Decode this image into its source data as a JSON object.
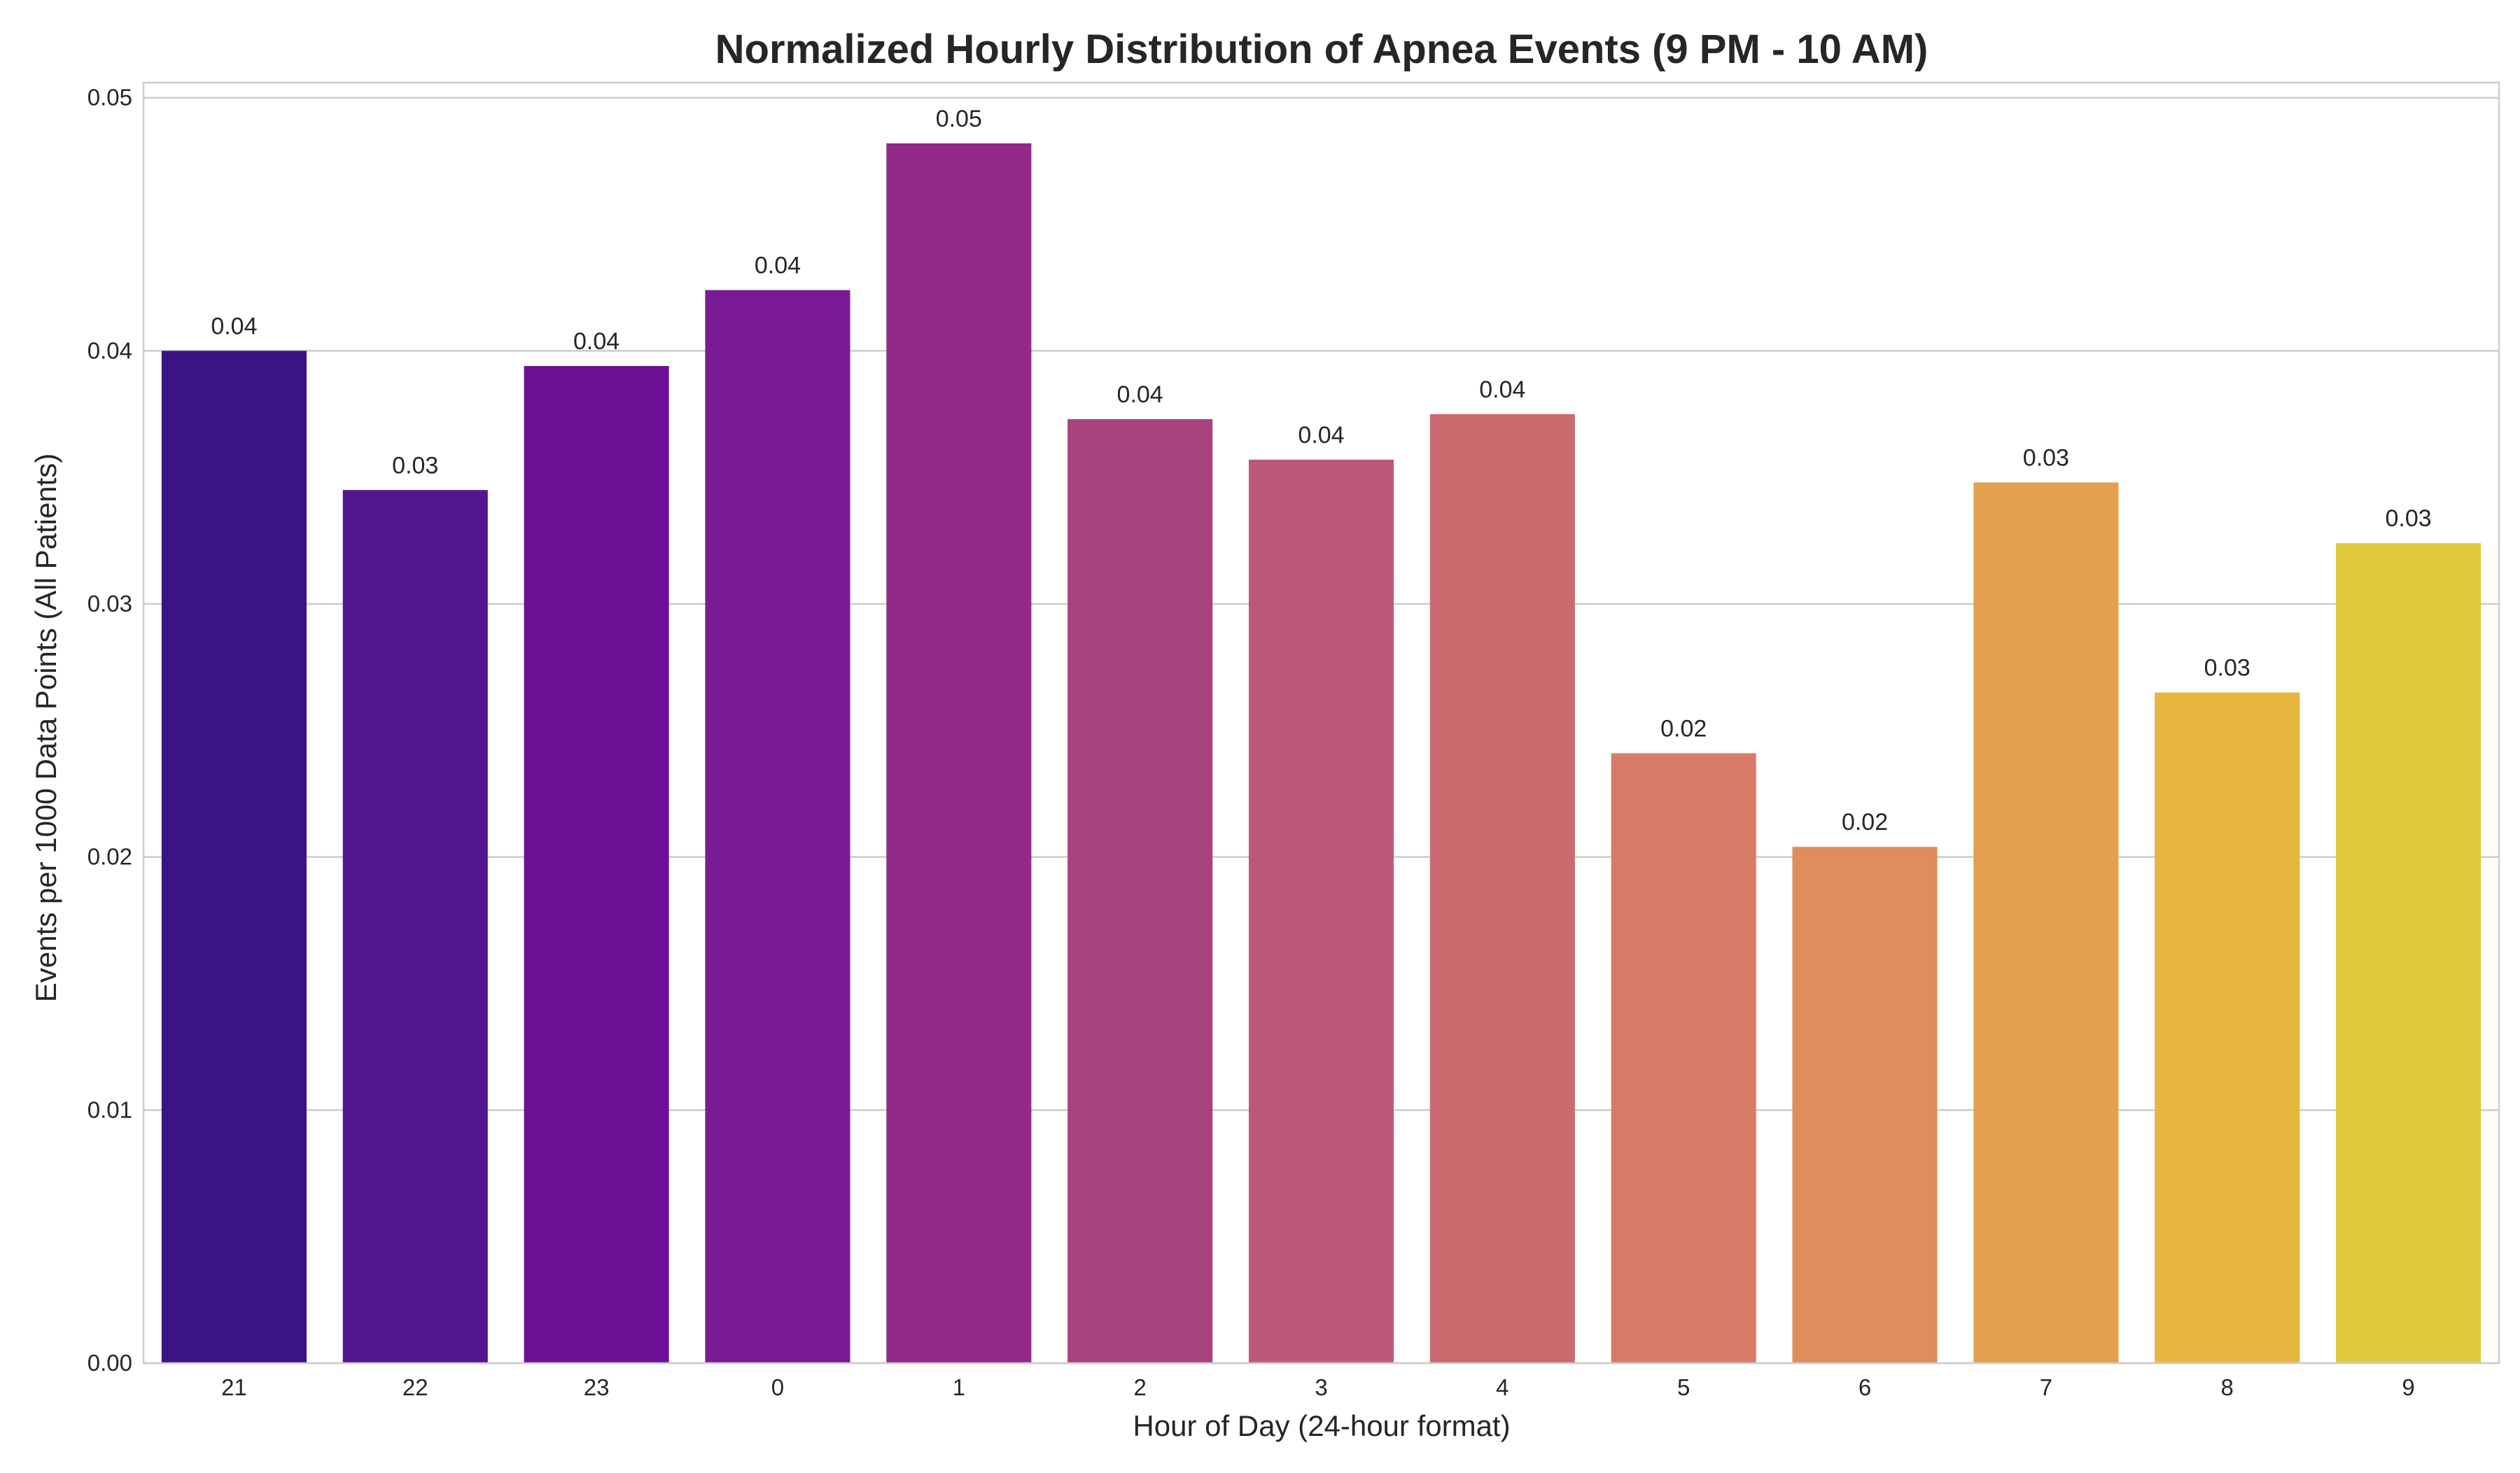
{
  "chart_data": {
    "type": "bar",
    "title": "Normalized Hourly Distribution of Apnea Events (9 PM - 10 AM)",
    "xlabel": "Hour of Day (24-hour format)",
    "ylabel": "Events per 1000 Data Points (All Patients)",
    "categories": [
      "21",
      "22",
      "23",
      "0",
      "1",
      "2",
      "3",
      "4",
      "5",
      "6",
      "7",
      "8",
      "9"
    ],
    "values": [
      0.04,
      0.0345,
      0.0394,
      0.0424,
      0.0482,
      0.0373,
      0.0357,
      0.0375,
      0.0241,
      0.0204,
      0.0348,
      0.0265,
      0.0324
    ],
    "value_labels": [
      "0.04",
      "0.03",
      "0.04",
      "0.04",
      "0.05",
      "0.04",
      "0.04",
      "0.04",
      "0.02",
      "0.02",
      "0.03",
      "0.03",
      "0.03"
    ],
    "colors": [
      "#3a1486",
      "#54168f",
      "#6a1196",
      "#7b1a97",
      "#932a8a",
      "#a8437e",
      "#bd5878",
      "#cb6b6f",
      "#d97c67",
      "#df8d5c",
      "#e4a04c",
      "#e7b63f",
      "#dfc93d"
    ],
    "ylim": [
      0,
      0.0506
    ],
    "yticks": [
      0.0,
      0.01,
      0.02,
      0.03,
      0.04,
      0.05
    ],
    "ytick_labels": [
      "0.00",
      "0.01",
      "0.02",
      "0.03",
      "0.04",
      "0.05"
    ],
    "grid": true,
    "grid_axis": "y",
    "legend": "none"
  }
}
